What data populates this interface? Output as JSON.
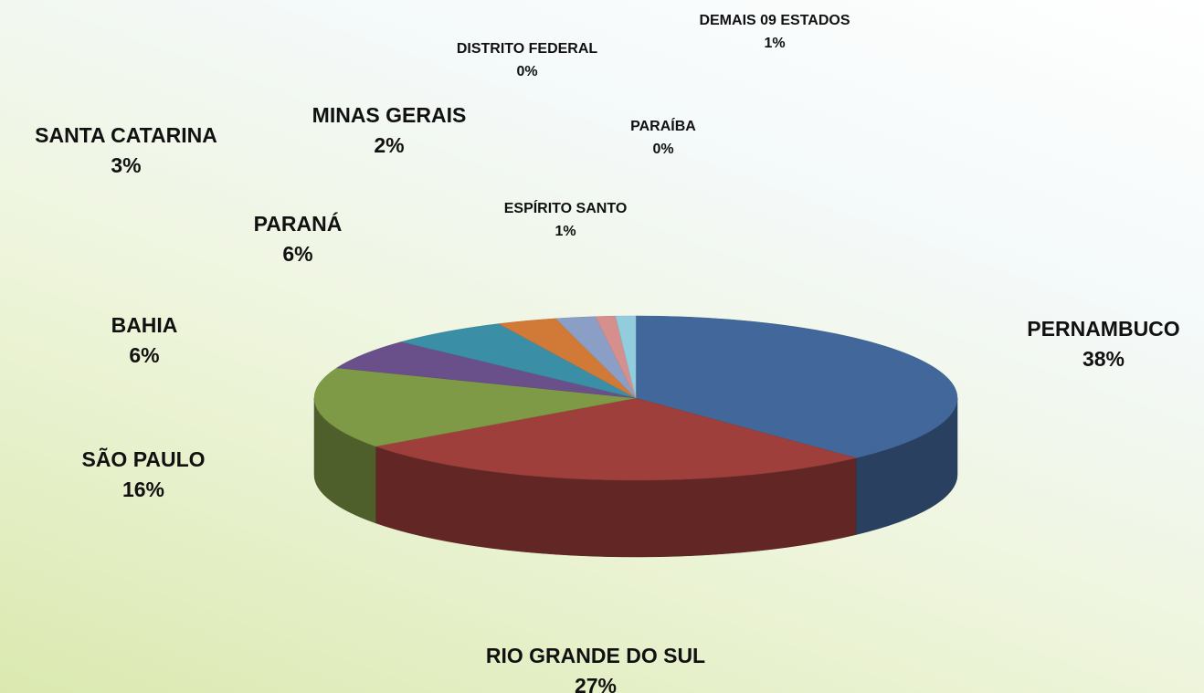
{
  "chart_data": {
    "type": "pie",
    "categories": [
      "PERNAMBUCO",
      "RIO GRANDE DO SUL",
      "SÃO PAULO",
      "BAHIA",
      "PARANÁ",
      "SANTA CATARINA",
      "MINAS GERAIS",
      "ESPÍRITO SANTO",
      "PARAÍBA",
      "DISTRITO FEDERAL",
      "DEMAIS 09 ESTADOS"
    ],
    "values": [
      38,
      27,
      16,
      6,
      6,
      3,
      2,
      1,
      0,
      0,
      1
    ],
    "value_labels": [
      "38%",
      "27%",
      "16%",
      "6%",
      "6%",
      "3%",
      "2%",
      "1%",
      "0%",
      "0%",
      "1%"
    ],
    "colors": [
      "#42689b",
      "#9e3f3c",
      "#7f9a47",
      "#6a508a",
      "#3a8ea5",
      "#d17a38",
      "#8b9fc6",
      "#d58f8c",
      "#b4c98b",
      "#a697c2",
      "#93cddd"
    ]
  }
}
